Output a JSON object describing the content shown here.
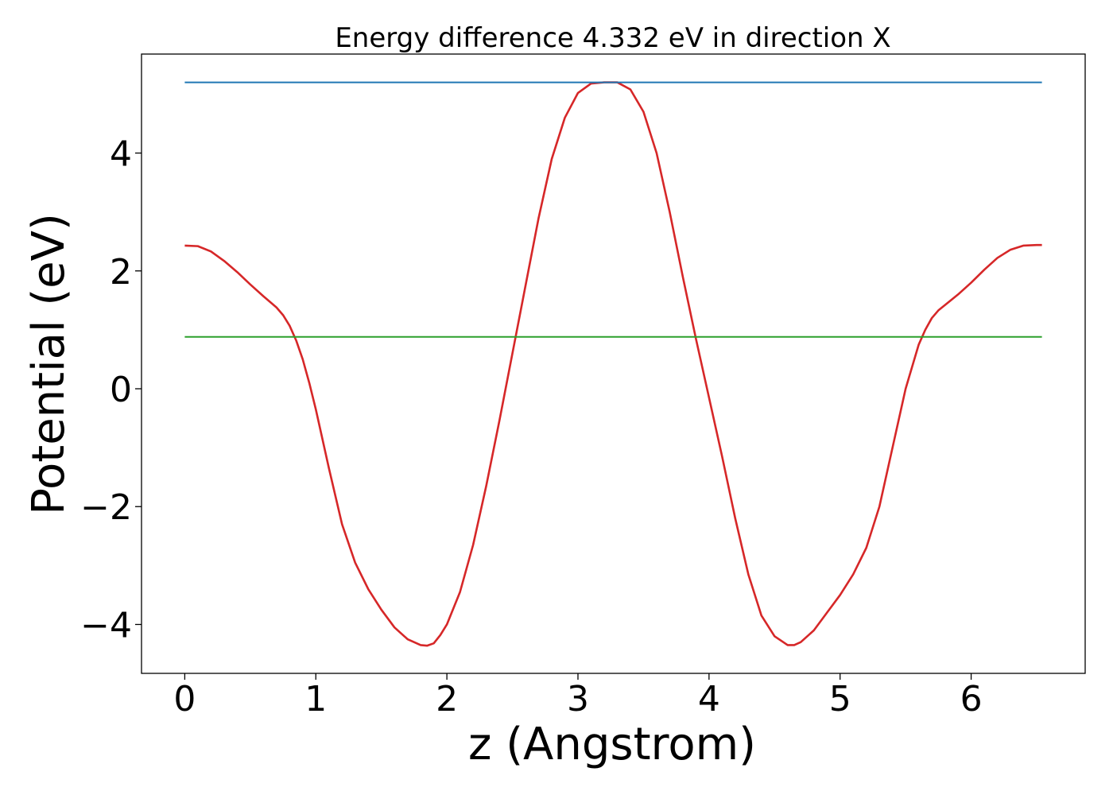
{
  "chart_data": {
    "type": "line",
    "title": "Energy difference 4.332 eV in direction X",
    "xlabel": "z (Angstrom)",
    "ylabel": "Potential (eV)",
    "xlim": [
      -0.33,
      6.87
    ],
    "ylim": [
      -4.83,
      5.68
    ],
    "xticks": [
      0,
      1,
      2,
      3,
      4,
      5,
      6
    ],
    "xtick_labels": [
      "0",
      "1",
      "2",
      "3",
      "4",
      "5",
      "6"
    ],
    "yticks": [
      -4,
      -2,
      0,
      2,
      4
    ],
    "ytick_labels": [
      "−4",
      "−2",
      "0",
      "2",
      "4"
    ],
    "grid": false,
    "series": [
      {
        "color": "#d62728",
        "x": [
          0,
          0.1,
          0.2,
          0.3,
          0.4,
          0.5,
          0.6,
          0.7,
          0.75,
          0.8,
          0.85,
          0.9,
          0.95,
          1.0,
          1.1,
          1.2,
          1.3,
          1.4,
          1.5,
          1.6,
          1.7,
          1.8,
          1.85,
          1.9,
          1.95,
          2.0,
          2.1,
          2.2,
          2.3,
          2.4,
          2.5,
          2.6,
          2.7,
          2.8,
          2.9,
          3.0,
          3.1,
          3.2,
          3.3,
          3.4,
          3.5,
          3.6,
          3.7,
          3.8,
          3.9,
          4.0,
          4.1,
          4.2,
          4.3,
          4.4,
          4.5,
          4.6,
          4.65,
          4.7,
          4.75,
          4.8,
          4.9,
          5.0,
          5.1,
          5.2,
          5.3,
          5.4,
          5.5,
          5.6,
          5.65,
          5.7,
          5.75,
          5.8,
          5.9,
          6.0,
          6.1,
          6.2,
          6.3,
          6.4,
          6.5,
          6.54
        ],
        "y": [
          2.43,
          2.42,
          2.33,
          2.17,
          1.98,
          1.77,
          1.57,
          1.38,
          1.25,
          1.07,
          0.82,
          0.5,
          0.1,
          -0.35,
          -1.35,
          -2.3,
          -2.95,
          -3.4,
          -3.75,
          -4.05,
          -4.25,
          -4.35,
          -4.36,
          -4.32,
          -4.18,
          -4.0,
          -3.45,
          -2.65,
          -1.65,
          -0.55,
          0.6,
          1.75,
          2.9,
          3.9,
          4.6,
          5.02,
          5.18,
          5.2,
          5.2,
          5.08,
          4.7,
          4.0,
          3.0,
          1.9,
          0.85,
          -0.15,
          -1.15,
          -2.2,
          -3.15,
          -3.85,
          -4.2,
          -4.35,
          -4.35,
          -4.3,
          -4.2,
          -4.1,
          -3.8,
          -3.5,
          -3.15,
          -2.7,
          -2.0,
          -1.0,
          0.0,
          0.75,
          1.0,
          1.2,
          1.33,
          1.42,
          1.6,
          1.8,
          2.02,
          2.22,
          2.36,
          2.43,
          2.44,
          2.44
        ]
      },
      {
        "color": "#1f77b4",
        "x": [
          0,
          6.54
        ],
        "y": [
          5.2,
          5.2
        ]
      },
      {
        "color": "#2ca02c",
        "x": [
          0,
          6.54
        ],
        "y": [
          0.88,
          0.88
        ]
      }
    ]
  }
}
